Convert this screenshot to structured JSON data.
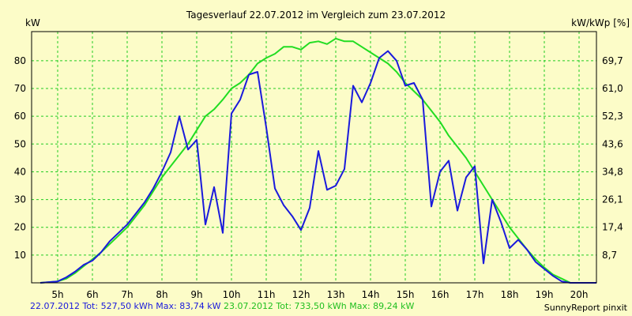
{
  "chart_data": {
    "type": "line",
    "title": "Tagesverlauf 22.07.2012 im Vergleich zum 23.07.2012",
    "ylabel_left": "kW",
    "ylabel_right": "kW/kWp [%]",
    "xlim": [
      4.25,
      20.5
    ],
    "ylim": [
      0,
      90.5
    ],
    "x_ticks": [
      5,
      6,
      7,
      8,
      9,
      10,
      11,
      12,
      13,
      14,
      15,
      16,
      17,
      18,
      19,
      20
    ],
    "x_tick_labels": [
      "5h",
      "6h",
      "7h",
      "8h",
      "9h",
      "10h",
      "11h",
      "12h",
      "13h",
      "14h",
      "15h",
      "16h",
      "17h",
      "18h",
      "19h",
      "20h"
    ],
    "y_ticks_left": [
      10,
      20,
      30,
      40,
      50,
      60,
      70,
      80
    ],
    "y_tick_labels_left": [
      "10",
      "20",
      "30",
      "40",
      "50",
      "60",
      "70",
      "80"
    ],
    "y_tick_labels_right": [
      "8,7",
      "17,4",
      "26,1",
      "34,8",
      "43,6",
      "52,3",
      "61,0",
      "69,7"
    ],
    "grid": true,
    "series": [
      {
        "name": "22.07.2012",
        "color": "#1a1adc",
        "x": [
          4.5,
          5.0,
          5.25,
          5.5,
          5.75,
          6.0,
          6.25,
          6.5,
          6.75,
          7.0,
          7.25,
          7.5,
          7.75,
          8.0,
          8.25,
          8.5,
          8.75,
          9.0,
          9.25,
          9.5,
          9.75,
          10.0,
          10.25,
          10.5,
          10.75,
          11.0,
          11.25,
          11.5,
          11.75,
          12.0,
          12.25,
          12.5,
          12.75,
          13.0,
          13.25,
          13.5,
          13.75,
          14.0,
          14.25,
          14.5,
          14.75,
          15.0,
          15.25,
          15.5,
          15.75,
          16.0,
          16.25,
          16.5,
          16.75,
          17.0,
          17.25,
          17.5,
          17.75,
          18.0,
          18.25,
          18.5,
          18.75,
          19.0,
          19.25,
          19.5,
          19.75,
          20.0,
          20.5
        ],
        "y": [
          0,
          0.5,
          2,
          4,
          6.5,
          8,
          11,
          15,
          18,
          21,
          25,
          29,
          34,
          40,
          47,
          60,
          48,
          51.5,
          21,
          34.5,
          18,
          61,
          66,
          75,
          76,
          56,
          34,
          28,
          24,
          19,
          27,
          47.5,
          33.5,
          35,
          41,
          71,
          65,
          72,
          81,
          83.5,
          80,
          71,
          72,
          66,
          27.5,
          40,
          44,
          26,
          38,
          42,
          7,
          30,
          22,
          12.5,
          15.5,
          12,
          7.5,
          5,
          2.5,
          0.5,
          0,
          0,
          0
        ]
      },
      {
        "name": "23.07.2012",
        "color": "#22dd22",
        "x": [
          4.5,
          5.0,
          5.25,
          5.5,
          5.75,
          6.0,
          6.25,
          6.5,
          6.75,
          7.0,
          7.25,
          7.5,
          7.75,
          8.0,
          8.25,
          8.5,
          8.75,
          9.0,
          9.25,
          9.5,
          9.75,
          10.0,
          10.25,
          10.5,
          10.75,
          11.0,
          11.25,
          11.5,
          11.75,
          12.0,
          12.25,
          12.5,
          12.75,
          13.0,
          13.25,
          13.5,
          13.75,
          14.0,
          14.25,
          14.5,
          14.75,
          15.0,
          15.25,
          15.5,
          15.75,
          16.0,
          16.25,
          16.5,
          16.75,
          17.0,
          17.25,
          17.5,
          17.75,
          18.0,
          18.25,
          18.5,
          18.75,
          19.0,
          19.25,
          19.5,
          19.75,
          20.0,
          20.5
        ],
        "y": [
          0,
          0.5,
          1.5,
          3.5,
          6,
          8.5,
          11,
          14,
          17,
          20,
          24,
          28,
          33,
          38,
          42,
          46,
          50,
          55,
          60,
          62.5,
          66,
          70,
          72,
          75,
          79,
          81,
          82.5,
          85,
          85,
          84,
          86.5,
          87,
          86,
          88,
          87,
          87,
          85,
          83,
          81,
          79,
          76,
          72,
          69,
          66,
          62,
          58,
          53,
          49,
          45,
          40,
          35,
          30,
          25,
          20,
          16,
          12,
          8.5,
          5.5,
          3,
          1.5,
          0,
          0,
          0
        ]
      }
    ],
    "footer_left": [
      {
        "text": "22.07.2012 Tot: 527,50 kWh Max: 83,74 kW",
        "color": "#1a1adc"
      },
      {
        "text": "23.07.2012 Tot: 733,50 kWh Max: 89,24 kW",
        "color": "#1fbf1f"
      }
    ],
    "footer_right": "SunnyReport pinxit",
    "colors": {
      "background": "#fcfcc8",
      "plot": "#fcfcc8",
      "grid": "#22cc22",
      "axis": "#000000"
    }
  }
}
